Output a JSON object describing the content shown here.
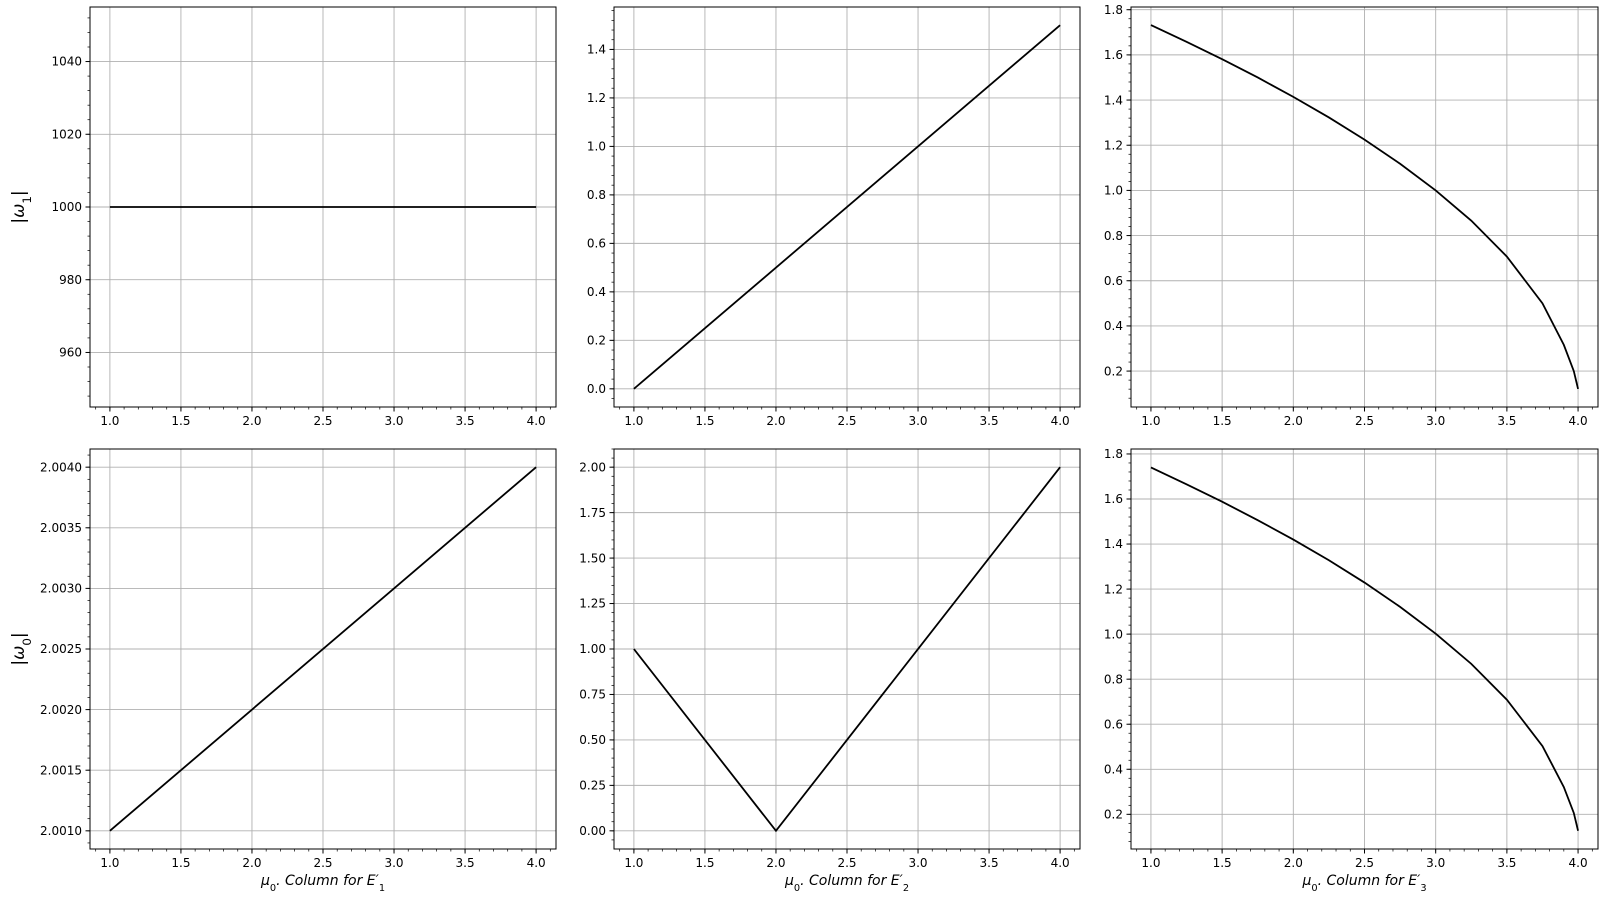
{
  "chart_data": [
    {
      "type": "line",
      "panel": "top-left",
      "ylabel": "|ω1|",
      "xlabel": "",
      "xlim": [
        0.86,
        4.14
      ],
      "ylim": [
        945,
        1055
      ],
      "xticks": [
        1.0,
        1.5,
        2.0,
        2.5,
        3.0,
        3.5,
        4.0
      ],
      "xtick_labels": [
        "1.0",
        "1.5",
        "2.0",
        "2.5",
        "3.0",
        "3.5",
        "4.0"
      ],
      "yticks": [
        960,
        980,
        1000,
        1020,
        1040
      ],
      "ytick_labels": [
        "960",
        "980",
        "1000",
        "1020",
        "1040"
      ],
      "grid": true,
      "series": [
        {
          "x": [
            1.0,
            4.0
          ],
          "y": [
            1000,
            1000
          ]
        }
      ]
    },
    {
      "type": "line",
      "panel": "top-middle",
      "ylabel": "",
      "xlabel": "",
      "xlim": [
        0.86,
        4.14
      ],
      "ylim": [
        -0.075,
        1.575
      ],
      "xticks": [
        1.0,
        1.5,
        2.0,
        2.5,
        3.0,
        3.5,
        4.0
      ],
      "xtick_labels": [
        "1.0",
        "1.5",
        "2.0",
        "2.5",
        "3.0",
        "3.5",
        "4.0"
      ],
      "yticks": [
        0.0,
        0.2,
        0.4,
        0.6,
        0.8,
        1.0,
        1.2,
        1.4
      ],
      "ytick_labels": [
        "0.0",
        "0.2",
        "0.4",
        "0.6",
        "0.8",
        "1.0",
        "1.2",
        "1.4"
      ],
      "grid": true,
      "series": [
        {
          "x": [
            1.0,
            4.0
          ],
          "y": [
            0.0,
            1.5
          ]
        }
      ]
    },
    {
      "type": "line",
      "panel": "top-right",
      "ylabel": "",
      "xlabel": "",
      "xlim": [
        0.86,
        4.14
      ],
      "ylim": [
        0.041,
        1.812
      ],
      "xticks": [
        1.0,
        1.5,
        2.0,
        2.5,
        3.0,
        3.5,
        4.0
      ],
      "xtick_labels": [
        "1.0",
        "1.5",
        "2.0",
        "2.5",
        "3.0",
        "3.5",
        "4.0"
      ],
      "yticks": [
        0.2,
        0.4,
        0.6,
        0.8,
        1.0,
        1.2,
        1.4,
        1.6,
        1.8
      ],
      "ytick_labels": [
        "0.2",
        "0.4",
        "0.6",
        "0.8",
        "1.0",
        "1.2",
        "1.4",
        "1.6",
        "1.8"
      ],
      "grid": true,
      "series": [
        {
          "x": [
            1.0,
            1.25,
            1.5,
            1.75,
            2.0,
            2.25,
            2.5,
            2.75,
            3.0,
            3.25,
            3.5,
            3.75,
            3.9,
            3.97,
            4.0
          ],
          "y": [
            1.732,
            1.658,
            1.581,
            1.5,
            1.414,
            1.323,
            1.225,
            1.118,
            1.0,
            0.866,
            0.707,
            0.5,
            0.316,
            0.2,
            0.121
          ]
        }
      ]
    },
    {
      "type": "line",
      "panel": "bottom-left",
      "ylabel": "|ω0|",
      "xlabel": "μ0.  Column for E′1",
      "xlim": [
        0.86,
        4.14
      ],
      "ylim": [
        2.00085,
        2.00415
      ],
      "xticks": [
        1.0,
        1.5,
        2.0,
        2.5,
        3.0,
        3.5,
        4.0
      ],
      "xtick_labels": [
        "1.0",
        "1.5",
        "2.0",
        "2.5",
        "3.0",
        "3.5",
        "4.0"
      ],
      "yticks": [
        2.001,
        2.0015,
        2.002,
        2.0025,
        2.003,
        2.0035,
        2.004
      ],
      "ytick_labels": [
        "2.0010",
        "2.0015",
        "2.0020",
        "2.0025",
        "2.0030",
        "2.0035",
        "2.0040"
      ],
      "grid": true,
      "series": [
        {
          "x": [
            1.0,
            4.0
          ],
          "y": [
            2.001,
            2.004
          ]
        }
      ]
    },
    {
      "type": "line",
      "panel": "bottom-middle",
      "ylabel": "",
      "xlabel": "μ0.  Column for E′2",
      "xlim": [
        0.86,
        4.14
      ],
      "ylim": [
        -0.1,
        2.1
      ],
      "xticks": [
        1.0,
        1.5,
        2.0,
        2.5,
        3.0,
        3.5,
        4.0
      ],
      "xtick_labels": [
        "1.0",
        "1.5",
        "2.0",
        "2.5",
        "3.0",
        "3.5",
        "4.0"
      ],
      "yticks": [
        0.0,
        0.25,
        0.5,
        0.75,
        1.0,
        1.25,
        1.5,
        1.75,
        2.0
      ],
      "ytick_labels": [
        "0.00",
        "0.25",
        "0.50",
        "0.75",
        "1.00",
        "1.25",
        "1.50",
        "1.75",
        "2.00"
      ],
      "grid": true,
      "series": [
        {
          "x": [
            1.0,
            2.0,
            4.0
          ],
          "y": [
            1.0,
            0.0,
            2.0
          ]
        }
      ]
    },
    {
      "type": "line",
      "panel": "bottom-right",
      "ylabel": "",
      "xlabel": "μ0.  Column for E′3",
      "xlim": [
        0.86,
        4.14
      ],
      "ylim": [
        0.046,
        1.822
      ],
      "xticks": [
        1.0,
        1.5,
        2.0,
        2.5,
        3.0,
        3.5,
        4.0
      ],
      "xtick_labels": [
        "1.0",
        "1.5",
        "2.0",
        "2.5",
        "3.0",
        "3.5",
        "4.0"
      ],
      "yticks": [
        0.2,
        0.4,
        0.6,
        0.8,
        1.0,
        1.2,
        1.4,
        1.6,
        1.8
      ],
      "ytick_labels": [
        "0.2",
        "0.4",
        "0.6",
        "0.8",
        "1.0",
        "1.2",
        "1.4",
        "1.6",
        "1.8"
      ],
      "grid": true,
      "series": [
        {
          "x": [
            1.0,
            1.25,
            1.5,
            1.75,
            2.0,
            2.25,
            2.5,
            2.75,
            3.0,
            3.25,
            3.5,
            3.75,
            3.9,
            3.97,
            4.0
          ],
          "y": [
            1.74,
            1.665,
            1.588,
            1.506,
            1.42,
            1.328,
            1.229,
            1.121,
            1.002,
            0.868,
            0.709,
            0.503,
            0.321,
            0.206,
            0.127
          ]
        }
      ]
    }
  ]
}
